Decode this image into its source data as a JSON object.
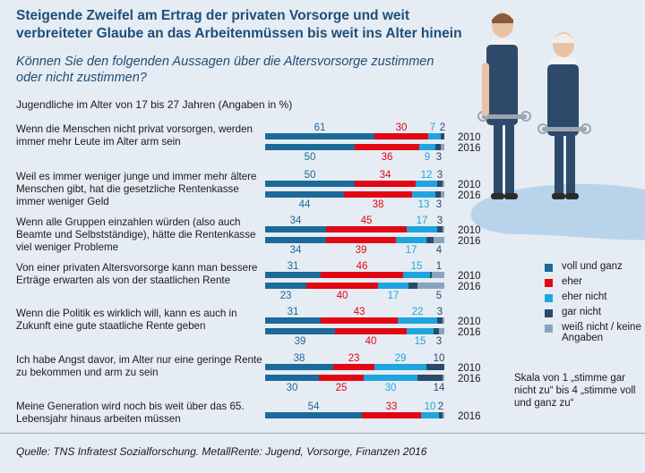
{
  "header": {
    "title": "Steigende Zweifel am Ertrag der privaten Vorsorge und weit verbreiteter Glaube an das Arbeitenmüssen bis weit ins Alter hinein",
    "subtitle": "Können Sie den folgenden Aussagen über die Altersvorsorge zustimmen oder nicht zustimmen?",
    "note": "Jugendliche im Alter von 17 bis 27 Jahren (Angaben in %)"
  },
  "legend": {
    "items": [
      {
        "label": "voll und ganz",
        "color": "#1b6a99"
      },
      {
        "label": "eher",
        "color": "#e30613"
      },
      {
        "label": "eher nicht",
        "color": "#1ea5dd"
      },
      {
        "label": "gar nicht",
        "color": "#2b4a68"
      },
      {
        "label": "weiß nicht / keine Angaben",
        "color": "#8aa4bf"
      }
    ]
  },
  "scale_note": "Skala von 1 „stimme gar nicht zu“ bis 4 „stimme voll und ganz zu“",
  "source": "Quelle: TNS Infratest Sozialforschung. MetallRente: Jugend, Vorsorge, Finanzen 2016",
  "chart_data": {
    "type": "bar",
    "orientation": "horizontal",
    "stacked": true,
    "unit": "%",
    "categories": [
      "voll und ganz",
      "eher",
      "eher nicht",
      "gar nicht",
      "weiß nicht / keine Angaben"
    ],
    "items": [
      {
        "statement": "Wenn die Menschen nicht privat vorsorgen, werden immer mehr Leute im Alter arm sein",
        "rows": [
          {
            "year": "2010",
            "values": [
              61,
              30,
              7,
              2,
              0
            ],
            "labels": [
              "61",
              "30",
              "7",
              "2",
              ""
            ]
          },
          {
            "year": "2016",
            "values": [
              50,
              36,
              9,
              3,
              2
            ],
            "labels": [
              "50",
              "36",
              "9",
              "3",
              ""
            ]
          }
        ]
      },
      {
        "statement": "Weil es immer weniger junge und immer mehr ältere Menschen gibt, hat die gesetzliche Rentenkasse immer weniger Geld",
        "rows": [
          {
            "year": "2010",
            "values": [
              50,
              34,
              12,
              3,
              1
            ],
            "labels": [
              "50",
              "34",
              "12",
              "3",
              ""
            ]
          },
          {
            "year": "2016",
            "values": [
              44,
              38,
              13,
              3,
              2
            ],
            "labels": [
              "44",
              "38",
              "13",
              "3",
              ""
            ]
          }
        ]
      },
      {
        "statement": "Wenn alle Gruppen einzahlen würden (also auch Beamte und Selbstständige), hätte die Rentenkasse viel weniger Probleme",
        "rows": [
          {
            "year": "2010",
            "values": [
              34,
              45,
              17,
              3,
              1
            ],
            "labels": [
              "34",
              "45",
              "17",
              "3",
              ""
            ]
          },
          {
            "year": "2016",
            "values": [
              34,
              39,
              17,
              4,
              6
            ],
            "labels": [
              "34",
              "39",
              "17",
              "4",
              ""
            ]
          }
        ]
      },
      {
        "statement": "Von einer privaten Altersvorsorge kann man bessere Erträge erwarten als von der staatlichen Rente",
        "rows": [
          {
            "year": "2010",
            "values": [
              31,
              46,
              15,
              1,
              7
            ],
            "labels": [
              "31",
              "46",
              "15",
              "1",
              ""
            ]
          },
          {
            "year": "2016",
            "values": [
              23,
              40,
              17,
              5,
              15
            ],
            "labels": [
              "23",
              "40",
              "17",
              "5",
              ""
            ]
          }
        ]
      },
      {
        "statement": "Wenn die Politik es wirklich will, kann es auch in Zukunft eine gute staatliche Rente geben",
        "rows": [
          {
            "year": "2010",
            "values": [
              31,
              43,
              22,
              3,
              1
            ],
            "labels": [
              "31",
              "43",
              "22",
              "3",
              ""
            ]
          },
          {
            "year": "2016",
            "values": [
              39,
              40,
              15,
              3,
              3
            ],
            "labels": [
              "39",
              "40",
              "15",
              "3",
              ""
            ]
          }
        ]
      },
      {
        "statement": "Ich habe Angst davor, im Alter nur eine geringe Rente zu bekommen und arm zu sein",
        "rows": [
          {
            "year": "2010",
            "values": [
              38,
              23,
              29,
              10,
              0
            ],
            "labels": [
              "38",
              "23",
              "29",
              "10",
              ""
            ]
          },
          {
            "year": "2016",
            "values": [
              30,
              25,
              30,
              14,
              1
            ],
            "labels": [
              "30",
              "25",
              "30",
              "14",
              ""
            ]
          }
        ]
      },
      {
        "statement": "Meine Generation wird noch bis weit über das 65. Lebensjahr hinaus arbeiten müssen",
        "rows": [
          {
            "year": "2016",
            "values": [
              54,
              33,
              10,
              2,
              1
            ],
            "labels": [
              "54",
              "33",
              "10",
              "2",
              ""
            ]
          }
        ]
      }
    ]
  }
}
